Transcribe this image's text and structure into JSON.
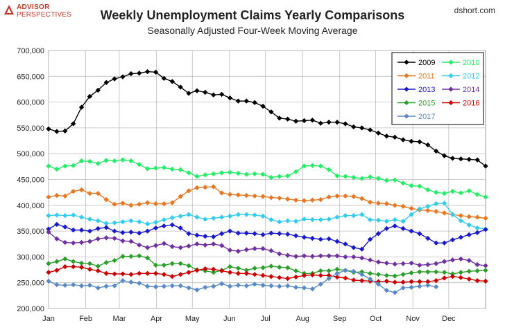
{
  "header": {
    "logo_line1": "ADVISOR",
    "logo_line2": "PERSPECTIVES",
    "source": "dshort.com"
  },
  "chart_data": {
    "type": "line",
    "title": "Weekly Unemployment Claims Yearly Comparisons",
    "subtitle": "Seasonally Adjusted Four-Week Moving Average",
    "xlabel": "",
    "ylabel": "",
    "ylim": [
      200000,
      700000
    ],
    "yticks": [
      200000,
      250000,
      300000,
      350000,
      400000,
      450000,
      500000,
      550000,
      600000,
      650000,
      700000
    ],
    "ytick_labels": [
      "200,000",
      "250,000",
      "300,000",
      "350,000",
      "400,000",
      "450,000",
      "500,000",
      "550,000",
      "600,000",
      "650,000",
      "700,000"
    ],
    "x_tick_labels": [
      "Jan",
      "Feb",
      "Mar",
      "Apr",
      "May",
      "Jun",
      "Jul",
      "Aug",
      "Sep",
      "Oct",
      "Nov",
      "Dec"
    ],
    "grid": true,
    "legend_position": "top-right",
    "series": [
      {
        "name": "2009",
        "color": "#000000",
        "values": [
          548000,
          543000,
          544000,
          558000,
          590000,
          611000,
          623000,
          638000,
          645000,
          649000,
          655000,
          656000,
          659000,
          658000,
          646000,
          640000,
          629000,
          617000,
          622000,
          619000,
          614000,
          615000,
          608000,
          602000,
          602000,
          599000,
          592000,
          581000,
          569000,
          567000,
          563000,
          564000,
          565000,
          559000,
          561000,
          561000,
          558000,
          552000,
          550000,
          546000,
          540000,
          534000,
          532000,
          527000,
          524000,
          523000,
          517000,
          505000,
          496000,
          491000,
          490000,
          489000,
          488000,
          476000
        ]
      },
      {
        "name": "2010",
        "color": "#22ee66",
        "values": [
          476000,
          470000,
          476000,
          477000,
          486000,
          485000,
          481000,
          487000,
          486000,
          488000,
          486000,
          479000,
          471000,
          472000,
          473000,
          470000,
          469000,
          463000,
          456000,
          459000,
          461000,
          463000,
          464000,
          462000,
          460000,
          461000,
          460000,
          454000,
          456000,
          457000,
          465000,
          476000,
          477000,
          476000,
          469000,
          457000,
          456000,
          454000,
          452000,
          455000,
          452000,
          448000,
          449000,
          443000,
          438000,
          437000,
          430000,
          425000,
          423000,
          427000,
          424000,
          428000,
          421000,
          416000
        ]
      },
      {
        "name": "2011",
        "color": "#e87722",
        "values": [
          416000,
          419000,
          418000,
          427000,
          430000,
          423000,
          423000,
          411000,
          402000,
          404000,
          400000,
          402000,
          405000,
          403000,
          403000,
          405000,
          417000,
          428000,
          434000,
          435000,
          436000,
          424000,
          421000,
          420000,
          419000,
          418000,
          417000,
          415000,
          414000,
          412000,
          410000,
          409000,
          410000,
          411000,
          416000,
          418000,
          418000,
          417000,
          413000,
          406000,
          404000,
          403000,
          400000,
          398000,
          394000,
          391000,
          390000,
          388000,
          385000,
          382000,
          380000,
          378000,
          377000,
          375000
        ]
      },
      {
        "name": "2012",
        "color": "#33ccee",
        "values": [
          380000,
          381000,
          380000,
          381000,
          377000,
          373000,
          370000,
          365000,
          366000,
          368000,
          370000,
          368000,
          364000,
          367000,
          372000,
          376000,
          379000,
          382000,
          377000,
          373000,
          375000,
          377000,
          379000,
          382000,
          382000,
          381000,
          379000,
          372000,
          368000,
          370000,
          369000,
          373000,
          372000,
          372000,
          373000,
          377000,
          380000,
          380000,
          382000,
          372000,
          371000,
          369000,
          372000,
          369000,
          382000,
          393000,
          398000,
          403000,
          404000,
          382000,
          370000,
          362000,
          356000,
          354000
        ]
      },
      {
        "name": "2013",
        "color": "#1a1acc",
        "values": [
          354000,
          363000,
          358000,
          352000,
          352000,
          350000,
          355000,
          357000,
          350000,
          347000,
          348000,
          346000,
          350000,
          356000,
          360000,
          362000,
          356000,
          345000,
          342000,
          340000,
          339000,
          345000,
          350000,
          346000,
          346000,
          345000,
          343000,
          346000,
          345000,
          344000,
          341000,
          338000,
          336000,
          334000,
          335000,
          330000,
          325000,
          318000,
          315000,
          334000,
          345000,
          355000,
          360000,
          355000,
          350000,
          345000,
          336000,
          327000,
          327000,
          333000,
          338000,
          343000,
          347000,
          353000
        ]
      },
      {
        "name": "2014",
        "color": "#7030a0",
        "values": [
          348000,
          335000,
          328000,
          327000,
          328000,
          330000,
          335000,
          337000,
          336000,
          331000,
          330000,
          323000,
          318000,
          322000,
          326000,
          320000,
          318000,
          321000,
          325000,
          323000,
          325000,
          322000,
          313000,
          311000,
          314000,
          316000,
          316000,
          312000,
          306000,
          303000,
          301000,
          302000,
          301000,
          302000,
          302000,
          302000,
          300000,
          300000,
          298000,
          294000,
          290000,
          288000,
          286000,
          287000,
          288000,
          284000,
          285000,
          287000,
          291000,
          294000,
          296000,
          293000,
          285000,
          283000
        ]
      },
      {
        "name": "2015",
        "color": "#2aa02a",
        "values": [
          287000,
          291000,
          296000,
          291000,
          288000,
          287000,
          282000,
          289000,
          293000,
          301000,
          301000,
          302000,
          298000,
          284000,
          284000,
          287000,
          287000,
          283000,
          275000,
          273000,
          270000,
          274000,
          281000,
          278000,
          274000,
          278000,
          279000,
          282000,
          280000,
          279000,
          273000,
          268000,
          268000,
          273000,
          273000,
          276000,
          274000,
          270000,
          271000,
          268000,
          266000,
          264000,
          263000,
          266000,
          269000,
          271000,
          271000,
          271000,
          270000,
          267000,
          270000,
          272000,
          273000,
          274000
        ]
      },
      {
        "name": "2016",
        "color": "#cc0000",
        "values": [
          270000,
          274000,
          281000,
          281000,
          280000,
          276000,
          273000,
          268000,
          267000,
          267000,
          266000,
          268000,
          268000,
          268000,
          266000,
          262000,
          266000,
          270000,
          274000,
          277000,
          276000,
          273000,
          270000,
          268000,
          268000,
          266000,
          264000,
          262000,
          260000,
          258000,
          261000,
          264000,
          265000,
          264000,
          264000,
          261000,
          259000,
          255000,
          254000,
          253000,
          252000,
          253000,
          251000,
          251000,
          252000,
          252000,
          252000,
          254000,
          259000,
          262000,
          260000,
          257000,
          254000,
          253000
        ]
      },
      {
        "name": "2017",
        "color": "#5a8ac6",
        "values": [
          253000,
          246000,
          245000,
          246000,
          244000,
          245000,
          240000,
          243000,
          244000,
          254000,
          251000,
          249000,
          243000,
          242000,
          243000,
          244000,
          244000,
          240000,
          236000,
          241000,
          243000,
          248000,
          243000,
          245000,
          244000,
          247000,
          245000,
          244000,
          243000,
          244000,
          241000,
          240000,
          238000,
          247000,
          258000,
          268000,
          274000,
          272000,
          266000,
          257000,
          247000,
          235000,
          231000,
          240000,
          241000,
          243000,
          245000,
          242000
        ]
      }
    ]
  }
}
